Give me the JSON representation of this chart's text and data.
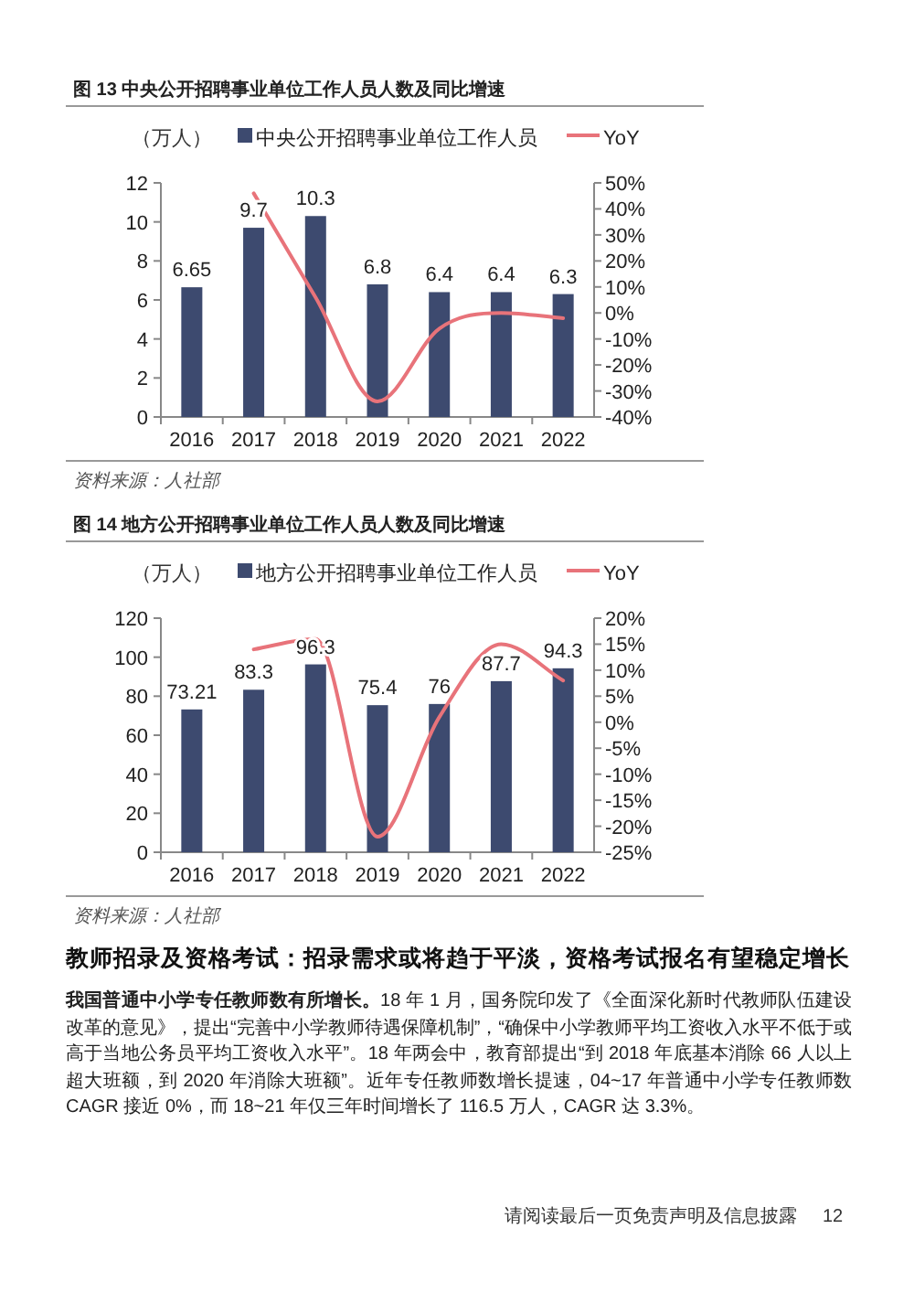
{
  "chart_data": [
    {
      "type": "bar",
      "title": "图 13  中央公开招聘事业单位工作人员人数及同比增速",
      "ylabel": "（万人）",
      "categories": [
        "2016",
        "2017",
        "2018",
        "2019",
        "2020",
        "2021",
        "2022"
      ],
      "series": [
        {
          "type": "bar",
          "name": "中央公开招聘事业单位工作人员",
          "color": "#3d4a6f",
          "values": [
            6.65,
            9.7,
            10.3,
            6.8,
            6.4,
            6.4,
            6.3
          ],
          "value_labels": [
            "6.65",
            "9.7",
            "10.3",
            "6.8",
            "6.4",
            "6.4",
            "6.3"
          ]
        },
        {
          "type": "line",
          "name": "YoY",
          "color": "#e8737a",
          "axis": "y2",
          "values": [
            null,
            46,
            6,
            -34,
            -6,
            0,
            -2
          ]
        }
      ],
      "ylim": [
        0,
        12
      ],
      "yticks": [
        0,
        2,
        4,
        6,
        8,
        10,
        12
      ],
      "y2lim": [
        -40,
        50
      ],
      "y2ticks": [
        {
          "value": -40,
          "label": "-40%"
        },
        {
          "value": -30,
          "label": "-30%"
        },
        {
          "value": -20,
          "label": "-20%"
        },
        {
          "value": -10,
          "label": "-10%"
        },
        {
          "value": 0,
          "label": "0%"
        },
        {
          "value": 10,
          "label": "10%"
        },
        {
          "value": 20,
          "label": "20%"
        },
        {
          "value": 30,
          "label": "30%"
        },
        {
          "value": 40,
          "label": "40%"
        },
        {
          "value": 50,
          "label": "50%"
        }
      ],
      "legend": "top",
      "annotations": [
        "资料来源：人社部"
      ]
    },
    {
      "type": "bar",
      "title": "图 14  地方公开招聘事业单位工作人员人数及同比增速",
      "ylabel": "（万人）",
      "categories": [
        "2016",
        "2017",
        "2018",
        "2019",
        "2020",
        "2021",
        "2022"
      ],
      "series": [
        {
          "type": "bar",
          "name": "地方公开招聘事业单位工作人员",
          "color": "#3d4a6f",
          "values": [
            73.21,
            83.3,
            96.3,
            75.4,
            76,
            87.7,
            94.3
          ],
          "value_labels": [
            "73.21",
            "83.3",
            "96.3",
            "75.4",
            "76",
            "87.7",
            "94.3"
          ]
        },
        {
          "type": "line",
          "name": "YoY",
          "color": "#e8737a",
          "axis": "y2",
          "values": [
            null,
            14,
            16,
            -22,
            1,
            15,
            8
          ]
        }
      ],
      "ylim": [
        0,
        120
      ],
      "yticks": [
        0,
        20,
        40,
        60,
        80,
        100,
        120
      ],
      "y2lim": [
        -25,
        20
      ],
      "y2ticks": [
        {
          "value": -25,
          "label": "-25%"
        },
        {
          "value": -20,
          "label": "-20%"
        },
        {
          "value": -15,
          "label": "-15%"
        },
        {
          "value": -10,
          "label": "-10%"
        },
        {
          "value": -5,
          "label": "-5%"
        },
        {
          "value": 0,
          "label": "0%"
        },
        {
          "value": 5,
          "label": "5%"
        },
        {
          "value": 10,
          "label": "10%"
        },
        {
          "value": 15,
          "label": "15%"
        },
        {
          "value": 20,
          "label": "20%"
        }
      ],
      "legend": "top",
      "annotations": [
        "资料来源：人社部"
      ]
    },
    {
      "type": "other",
      "title": "教师招录及资格考试：招录需求或将趋于平淡，资格考试报名有望稳定增长",
      "annotations": [
        "我国普通中小学专任教师数有所增长。",
        "18 年 1 月，国务院印发了《全面深化新时代教师队伍建设改革的意见》，提出“完善中小学教师待遇保障机制”，“确保中小学教师平均工资收入水平不低于或高于当地公务员平均工资收入水平”。18 年两会中，教育部提出“到 2018 年底基本消除 66 人以上超大班额，到 2020 年消除大班额”。近年专任教师数增长提速，04~17 年普通中小学专任教师数 CAGR 接近 0%，而 18~21 年仅三年时间增长了 116.5 万人，CAGR 达 3.3%。",
        "请阅读最后一页免责声明及信息披露",
        "12"
      ]
    }
  ]
}
